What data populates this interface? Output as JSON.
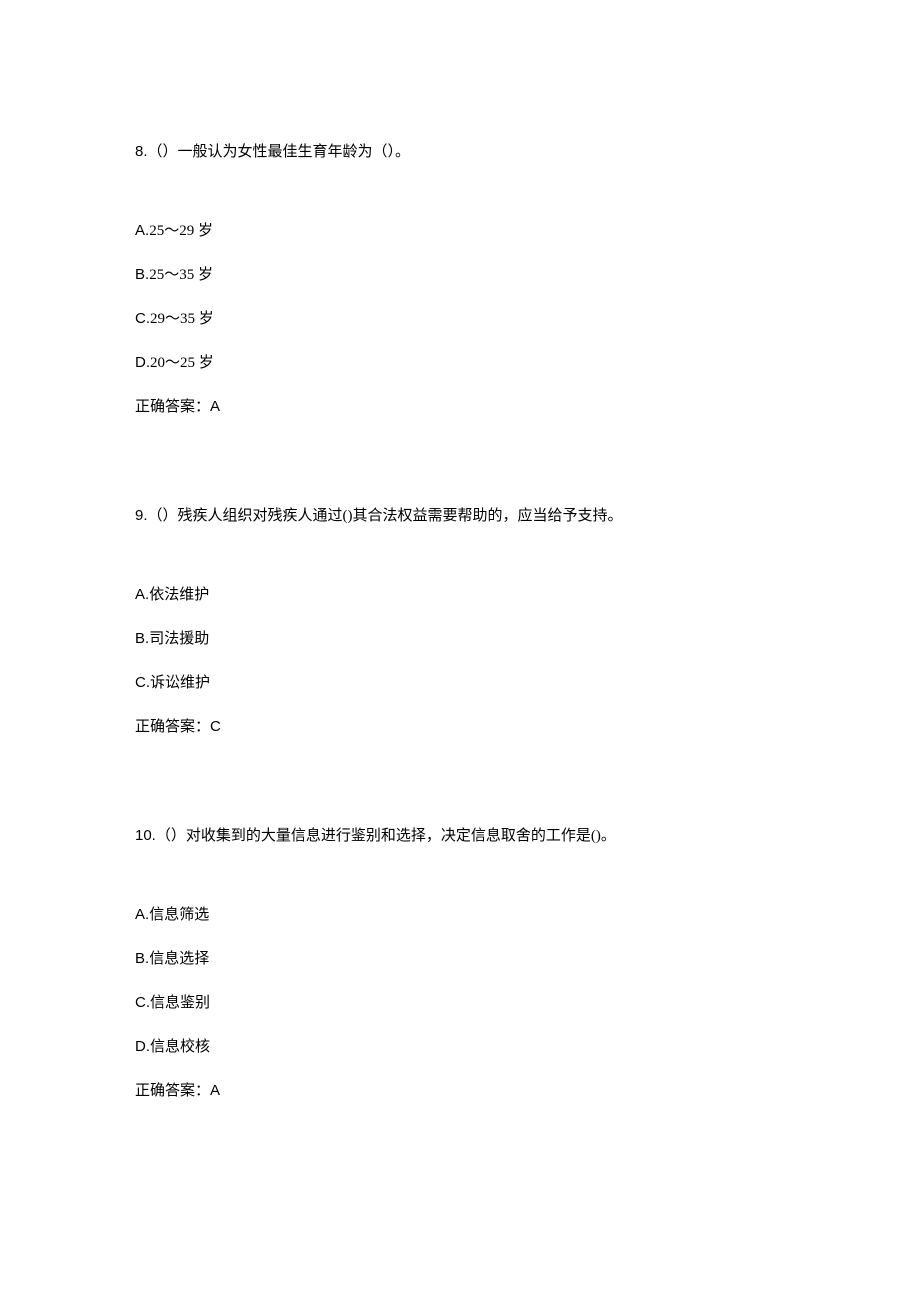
{
  "questions": [
    {
      "number": "8.",
      "text": "（）一般认为女性最佳生育年龄为（）。",
      "options": [
        {
          "prefix": "A.",
          "text": "25～29 岁"
        },
        {
          "prefix": "B.",
          "text": "25～35 岁"
        },
        {
          "prefix": "C.",
          "text": "29～35  岁"
        },
        {
          "prefix": "D.",
          "text": "20～25 岁"
        }
      ],
      "answer_label": "正确答案：",
      "answer_value": "A"
    },
    {
      "number": "9.",
      "text": "（）残疾人组织对残疾人通过()其合法权益需要帮助的，应当给予支持。",
      "options": [
        {
          "prefix": "A.",
          "text": "依法维护"
        },
        {
          "prefix": "B.",
          "text": "司法援助"
        },
        {
          "prefix": "C.",
          "text": "诉讼维护"
        }
      ],
      "answer_label": "正确答案：",
      "answer_value": "C"
    },
    {
      "number": "10.",
      "text": "（）对收集到的大量信息进行鉴别和选择，决定信息取舍的工作是()。",
      "options": [
        {
          "prefix": "A.",
          "text": "信息筛选"
        },
        {
          "prefix": "B.",
          "text": "信息选择"
        },
        {
          "prefix": "C.",
          "text": "信息鉴别"
        },
        {
          "prefix": "D.",
          "text": "信息校核"
        }
      ],
      "answer_label": "正确答案：",
      "answer_value": "A"
    }
  ]
}
